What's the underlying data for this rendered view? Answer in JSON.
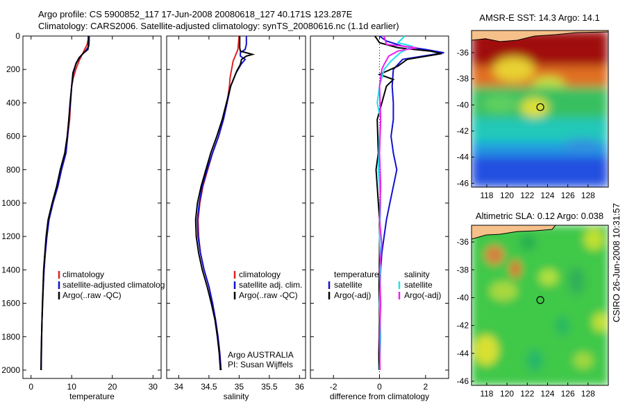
{
  "header": {
    "line1": "Argo profile: CS 5900852_117 17-Jun-2008 20080618_127 40.171S 123.287E",
    "line2": "Climatology: CARS2006. Satellite-adjusted climatology: synTS_20080616.nc (1.1d earlier)"
  },
  "side_label": "CSIRO 26-Jun-2008 10:31:57",
  "colors": {
    "climatology": "#e02020",
    "satellite": "#1010d0",
    "argo": "#000000",
    "cyan": "#20e0ee",
    "magenta": "#ee20ee"
  },
  "chart_data": [
    {
      "type": "line",
      "name": "temperature-panel",
      "xlabel": "temperature",
      "xlim": [
        -2,
        32
      ],
      "xticks": [
        0,
        10,
        20,
        30
      ],
      "ylim": [
        0,
        2050
      ],
      "yticks": [
        0,
        200,
        400,
        600,
        800,
        1000,
        1200,
        1400,
        1600,
        1800,
        2000
      ],
      "y_reversed": true,
      "legend": [
        "climatology",
        "satellite-adjusted climatolog",
        "Argo(..raw -QC)"
      ],
      "series": [
        {
          "key": "climatology",
          "color": "#e02020",
          "points": [
            [
              14.3,
              0
            ],
            [
              13.8,
              50
            ],
            [
              12.8,
              100
            ],
            [
              11.8,
              150
            ],
            [
              11.0,
              200
            ],
            [
              10.4,
              250
            ],
            [
              10.0,
              300
            ],
            [
              9.7,
              400
            ],
            [
              9.5,
              500
            ],
            [
              9.0,
              600
            ],
            [
              8.6,
              700
            ],
            [
              7.5,
              800
            ],
            [
              6.6,
              900
            ],
            [
              5.4,
              1000
            ],
            [
              4.4,
              1100
            ],
            [
              3.9,
              1200
            ],
            [
              3.5,
              1300
            ],
            [
              3.2,
              1400
            ],
            [
              3.0,
              1500
            ],
            [
              2.85,
              1600
            ],
            [
              2.7,
              1700
            ],
            [
              2.6,
              1800
            ],
            [
              2.55,
              1900
            ],
            [
              2.5,
              2000
            ]
          ]
        },
        {
          "key": "satellite",
          "color": "#1010d0",
          "points": [
            [
              14.3,
              0
            ],
            [
              14.3,
              30
            ],
            [
              14.2,
              60
            ],
            [
              13.4,
              90
            ],
            [
              12.2,
              120
            ],
            [
              11.1,
              160
            ],
            [
              10.4,
              220
            ],
            [
              10.0,
              300
            ],
            [
              9.7,
              400
            ],
            [
              9.3,
              500
            ],
            [
              9.0,
              600
            ],
            [
              8.6,
              700
            ],
            [
              7.5,
              800
            ],
            [
              6.6,
              900
            ],
            [
              5.4,
              1000
            ],
            [
              4.4,
              1100
            ],
            [
              3.9,
              1200
            ],
            [
              3.5,
              1300
            ],
            [
              3.2,
              1400
            ],
            [
              3.0,
              1500
            ],
            [
              2.85,
              1600
            ],
            [
              2.7,
              1700
            ],
            [
              2.6,
              1800
            ],
            [
              2.55,
              1900
            ],
            [
              2.5,
              2000
            ]
          ]
        },
        {
          "key": "argo",
          "color": "#000000",
          "points": [
            [
              14.1,
              0
            ],
            [
              14.1,
              60
            ],
            [
              14.0,
              80
            ],
            [
              13.0,
              100
            ],
            [
              11.8,
              130
            ],
            [
              11.0,
              170
            ],
            [
              10.3,
              220
            ],
            [
              10.0,
              300
            ],
            [
              9.6,
              400
            ],
            [
              9.3,
              500
            ],
            [
              8.9,
              600
            ],
            [
              8.3,
              700
            ],
            [
              7.2,
              800
            ],
            [
              6.3,
              900
            ],
            [
              5.2,
              1000
            ],
            [
              4.2,
              1100
            ],
            [
              3.7,
              1200
            ],
            [
              3.4,
              1300
            ],
            [
              3.1,
              1400
            ],
            [
              2.95,
              1500
            ],
            [
              2.8,
              1600
            ],
            [
              2.7,
              1700
            ],
            [
              2.6,
              1800
            ],
            [
              2.5,
              1900
            ],
            [
              2.45,
              2000
            ]
          ]
        }
      ]
    },
    {
      "type": "line",
      "name": "salinity-panel",
      "xlabel": "salinity",
      "xlim": [
        33.8,
        36.1
      ],
      "xticks": [
        34,
        34.5,
        35,
        35.5,
        36
      ],
      "ylim": [
        0,
        2050
      ],
      "y_reversed": true,
      "legend": [
        "climatology",
        "satellite adj. clim.",
        "Argo(..raw -QC)"
      ],
      "annotation": [
        "Argo AUSTRALIA",
        "PI: Susan Wijffels"
      ],
      "series": [
        {
          "key": "climatology",
          "color": "#e02020",
          "points": [
            [
              35.0,
              0
            ],
            [
              34.98,
              80
            ],
            [
              34.9,
              150
            ],
            [
              34.85,
              250
            ],
            [
              34.84,
              300
            ],
            [
              34.8,
              400
            ],
            [
              34.74,
              500
            ],
            [
              34.66,
              600
            ],
            [
              34.56,
              700
            ],
            [
              34.48,
              800
            ],
            [
              34.4,
              900
            ],
            [
              34.35,
              1000
            ],
            [
              34.32,
              1100
            ],
            [
              34.33,
              1200
            ],
            [
              34.36,
              1300
            ],
            [
              34.42,
              1400
            ],
            [
              34.5,
              1500
            ],
            [
              34.56,
              1600
            ],
            [
              34.61,
              1700
            ],
            [
              34.65,
              1800
            ],
            [
              34.68,
              1900
            ],
            [
              34.7,
              2000
            ]
          ]
        },
        {
          "key": "satellite",
          "color": "#1010d0",
          "points": [
            [
              35.12,
              0
            ],
            [
              35.12,
              50
            ],
            [
              35.1,
              80
            ],
            [
              35.02,
              100
            ],
            [
              35.02,
              120
            ],
            [
              35.1,
              140
            ],
            [
              35.03,
              170
            ],
            [
              34.95,
              220
            ],
            [
              34.86,
              300
            ],
            [
              34.8,
              400
            ],
            [
              34.74,
              500
            ],
            [
              34.66,
              600
            ],
            [
              34.56,
              700
            ],
            [
              34.47,
              800
            ],
            [
              34.39,
              900
            ],
            [
              34.34,
              1000
            ],
            [
              34.31,
              1100
            ],
            [
              34.32,
              1200
            ],
            [
              34.36,
              1300
            ],
            [
              34.42,
              1400
            ],
            [
              34.5,
              1500
            ],
            [
              34.56,
              1600
            ],
            [
              34.61,
              1700
            ],
            [
              34.65,
              1800
            ],
            [
              34.68,
              1900
            ],
            [
              34.7,
              2000
            ]
          ]
        },
        {
          "key": "argo",
          "color": "#000000",
          "points": [
            [
              35.01,
              0
            ],
            [
              35.01,
              70
            ],
            [
              35.02,
              90
            ],
            [
              35.22,
              110
            ],
            [
              35.12,
              120
            ],
            [
              35.04,
              140
            ],
            [
              35.02,
              170
            ],
            [
              34.96,
              210
            ],
            [
              34.86,
              300
            ],
            [
              34.79,
              400
            ],
            [
              34.72,
              500
            ],
            [
              34.63,
              600
            ],
            [
              34.53,
              700
            ],
            [
              34.45,
              800
            ],
            [
              34.37,
              900
            ],
            [
              34.31,
              1000
            ],
            [
              34.28,
              1100
            ],
            [
              34.29,
              1200
            ],
            [
              34.33,
              1300
            ],
            [
              34.39,
              1400
            ],
            [
              34.47,
              1500
            ],
            [
              34.54,
              1600
            ],
            [
              34.6,
              1700
            ],
            [
              34.64,
              1800
            ],
            [
              34.67,
              1900
            ],
            [
              34.69,
              2000
            ]
          ]
        }
      ]
    },
    {
      "type": "line",
      "name": "difference-panel",
      "xlabel": "difference from climatology",
      "xlim": [
        -3,
        3
      ],
      "xticks": [
        -2,
        0,
        2
      ],
      "ylim": [
        0,
        2050
      ],
      "y_reversed": true,
      "legend_left_title": "temperature",
      "legend_right_title": "salinity",
      "legend_left": [
        "satellite",
        "Argo(-adj)"
      ],
      "legend_right": [
        "satellite",
        "Argo(-adj)"
      ],
      "series": [
        {
          "key": "temp-satellite",
          "color": "#1010d0",
          "points": [
            [
              0.0,
              0
            ],
            [
              0.3,
              30
            ],
            [
              1.0,
              60
            ],
            [
              2.0,
              80
            ],
            [
              2.8,
              100
            ],
            [
              1.0,
              140
            ],
            [
              0.6,
              200
            ],
            [
              0.55,
              300
            ],
            [
              0.6,
              400
            ],
            [
              0.6,
              500
            ],
            [
              0.5,
              600
            ],
            [
              0.6,
              700
            ],
            [
              0.75,
              800
            ],
            [
              0.6,
              900
            ],
            [
              0.45,
              1000
            ],
            [
              0.3,
              1100
            ],
            [
              0.2,
              1200
            ],
            [
              0.1,
              1300
            ],
            [
              0.05,
              1400
            ],
            [
              0.02,
              1500
            ],
            [
              0.0,
              2000
            ]
          ]
        },
        {
          "key": "temp-argo",
          "color": "#000000",
          "points": [
            [
              -0.2,
              0
            ],
            [
              0.0,
              40
            ],
            [
              0.8,
              70
            ],
            [
              2.2,
              90
            ],
            [
              2.7,
              105
            ],
            [
              1.2,
              140
            ],
            [
              0.8,
              180
            ],
            [
              0.0,
              230
            ],
            [
              0.6,
              260
            ],
            [
              0.3,
              300
            ],
            [
              -0.1,
              500
            ],
            [
              -0.05,
              700
            ],
            [
              -0.15,
              800
            ],
            [
              -0.1,
              900
            ],
            [
              0.0,
              1100
            ],
            [
              0.0,
              1300
            ],
            [
              -0.02,
              1500
            ],
            [
              0.0,
              1700
            ],
            [
              -0.03,
              1900
            ],
            [
              -0.02,
              2000
            ]
          ]
        },
        {
          "key": "sal-satellite",
          "color": "#20e0ee",
          "points": [
            [
              1.1,
              0
            ],
            [
              0.8,
              40
            ],
            [
              1.4,
              60
            ],
            [
              0.9,
              100
            ],
            [
              0.5,
              150
            ],
            [
              0.2,
              200
            ],
            [
              0.0,
              300
            ],
            [
              -0.1,
              400
            ],
            [
              0.05,
              500
            ],
            [
              0.0,
              600
            ],
            [
              -0.05,
              800
            ],
            [
              0.05,
              1000
            ],
            [
              0.0,
              1200
            ],
            [
              0.05,
              1400
            ],
            [
              0.0,
              1600
            ],
            [
              0.05,
              1800
            ],
            [
              0.0,
              2000
            ]
          ]
        },
        {
          "key": "sal-argo",
          "color": "#ee20ee",
          "points": [
            [
              0.2,
              0
            ],
            [
              0.3,
              50
            ],
            [
              1.6,
              70
            ],
            [
              0.8,
              90
            ],
            [
              0.4,
              120
            ],
            [
              0.2,
              170
            ],
            [
              0.1,
              200
            ],
            [
              0.0,
              300
            ],
            [
              0.05,
              500
            ],
            [
              0.0,
              700
            ],
            [
              0.05,
              900
            ],
            [
              0.0,
              1100
            ],
            [
              0.1,
              1250
            ],
            [
              0.0,
              1400
            ],
            [
              0.05,
              1600
            ],
            [
              0.0,
              1800
            ],
            [
              0.02,
              2000
            ]
          ]
        }
      ]
    },
    {
      "type": "heatmap",
      "name": "sst-map",
      "title": "AMSR-E SST: 14.3 Argo: 14.1",
      "xlim": [
        116.5,
        130
      ],
      "xticks": [
        118,
        120,
        122,
        124,
        126,
        128
      ],
      "ylim": [
        -46.3,
        -34.3
      ],
      "yticks": [
        -36,
        -38,
        -40,
        -42,
        -44,
        -46
      ],
      "marker": [
        123.287,
        -40.171
      ]
    },
    {
      "type": "heatmap",
      "name": "sla-map",
      "title": "Altimetric SLA: 0.12 Argo: 0.038",
      "xlim": [
        116.5,
        130
      ],
      "xticks": [
        118,
        120,
        122,
        124,
        126,
        128
      ],
      "ylim": [
        -46.3,
        -34.8
      ],
      "yticks": [
        -36,
        -38,
        -40,
        -42,
        -44,
        -46
      ],
      "marker": [
        123.287,
        -40.171
      ]
    }
  ]
}
